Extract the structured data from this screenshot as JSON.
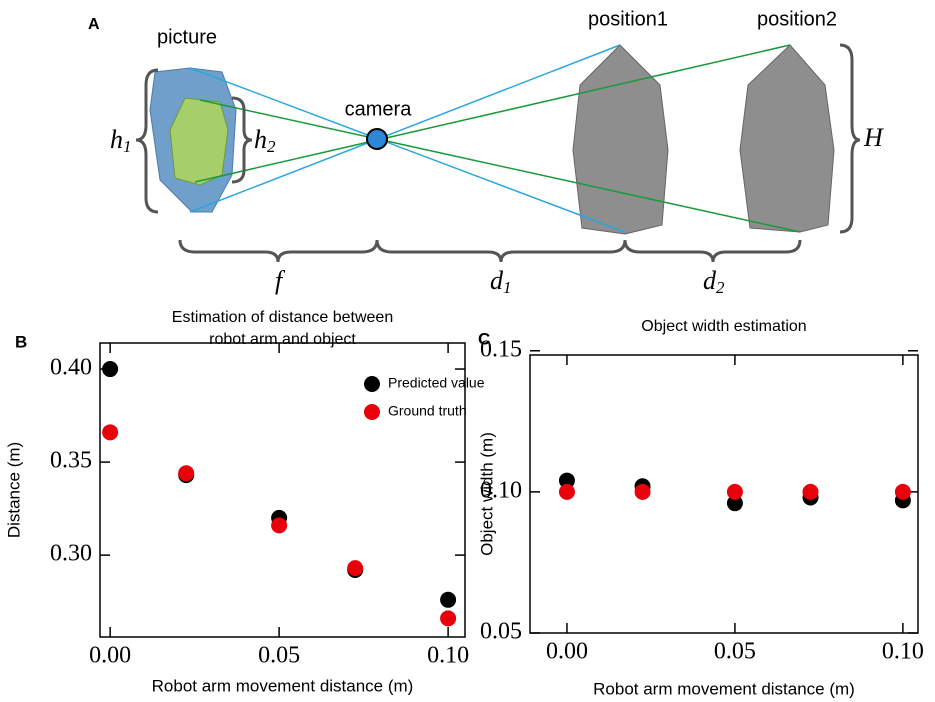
{
  "diagram": {
    "panel_label": "A",
    "picture": "picture",
    "camera": "camera",
    "position1": "position1",
    "position2": "position2",
    "h1": [
      "h",
      "1"
    ],
    "h2": [
      "h",
      "2"
    ],
    "H": "H",
    "f": "f",
    "d1": [
      "d",
      "1"
    ],
    "d2": [
      "d",
      "2"
    ]
  },
  "chart_data": [
    {
      "type": "scatter",
      "panel_label": "B",
      "title": [
        "Estimation of distance between",
        "robot arm and object"
      ],
      "x_label": "Robot arm movement distance  (m)",
      "y_label": "Distance  (m)",
      "x": [
        0,
        0.0225,
        0.05,
        0.0725,
        0.1
      ],
      "series": [
        {
          "name": "Predicted value",
          "color": "#000000",
          "values": [
            0.4,
            0.343,
            0.32,
            0.292,
            0.276
          ]
        },
        {
          "name": "Ground truth",
          "color": "#e8000b",
          "values": [
            0.366,
            0.344,
            0.316,
            0.293,
            0.266
          ]
        }
      ],
      "xlim": [
        -0.003,
        0.105
      ],
      "ylim": [
        0.256,
        0.414
      ],
      "xticks": [
        {
          "value": 0,
          "label": "0.00"
        },
        0.05,
        {
          "value": 0.1,
          "label": "0.10"
        }
      ],
      "yticks": [
        {
          "value": 0.3,
          "label": "0.30"
        },
        0.35,
        {
          "value": 0.4,
          "label": "0.40"
        }
      ],
      "legend": "upper right"
    },
    {
      "type": "scatter",
      "panel_label": "C",
      "title": [
        "Object width estimation"
      ],
      "x_label": "Robot arm movement distance  (m)",
      "y_label": "Object width (m)",
      "x": [
        0,
        0.0225,
        0.05,
        0.0725,
        0.1
      ],
      "series": [
        {
          "name": "Predicted value",
          "color": "#000000",
          "values": [
            0.104,
            0.102,
            0.096,
            0.098,
            0.097
          ]
        },
        {
          "name": "Ground truth",
          "color": "#e8000b",
          "values": [
            0.1,
            0.1,
            0.1,
            0.1,
            0.1
          ]
        }
      ],
      "xlim": [
        -0.011,
        0.1045
      ],
      "ylim": [
        0.05,
        0.1485
      ],
      "xticks": [
        {
          "value": 0,
          "label": "0.00"
        },
        0.05,
        {
          "value": 0.1,
          "label": "0.10"
        }
      ],
      "yticks": [
        0.05,
        {
          "value": 0.1,
          "label": "0.10"
        },
        0.15
      ]
    }
  ]
}
